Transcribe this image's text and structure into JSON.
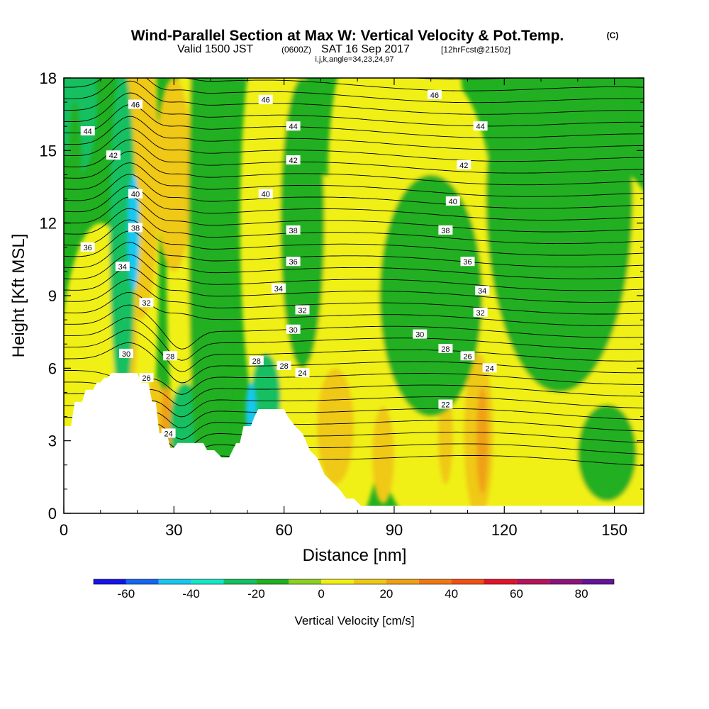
{
  "chart_data": {
    "type": "heatmap",
    "title": "Wind-Parallel Section at Max W: Vertical Velocity & Pot.Temp.",
    "title_tag": "(C)",
    "subtitle_main": "Valid 1500 JST",
    "subtitle_utc": "(0600Z)",
    "subtitle_date": "SAT 16 Sep 2017",
    "subtitle_fcst": "[12hrFcst@2150z]",
    "grid_info": "i,j,k,angle=34,23,24,97",
    "xlabel": "Distance [nm]",
    "ylabel": "Height [Kft MSL]",
    "xlim": [
      0,
      158
    ],
    "ylim": [
      0,
      18
    ],
    "x_ticks": [
      0,
      30,
      60,
      90,
      120,
      150
    ],
    "y_ticks": [
      0,
      3,
      6,
      9,
      12,
      15,
      18
    ],
    "colorbar": {
      "label": "Vertical Velocity [cm/s]",
      "bounds": [
        -70,
        -60,
        -50,
        -40,
        -30,
        -20,
        -10,
        0,
        10,
        20,
        30,
        40,
        50,
        60,
        70,
        80,
        90
      ],
      "colors": [
        "#1414e6",
        "#1466ee",
        "#14c8f0",
        "#14e6c8",
        "#14c060",
        "#20b020",
        "#8cd020",
        "#f0f014",
        "#f0c814",
        "#f0a014",
        "#f07814",
        "#f05014",
        "#e01428",
        "#b4145a",
        "#8c1478",
        "#641496"
      ],
      "tick_labels": [
        "-60",
        "-40",
        "-20",
        "0",
        "20",
        "40",
        "60",
        "80"
      ],
      "tick_values": [
        -60,
        -40,
        -20,
        0,
        20,
        40,
        60,
        80
      ]
    },
    "theta_labels": [
      {
        "text": "46",
        "x": 19.5,
        "y": 16.9
      },
      {
        "text": "44",
        "x": 6.5,
        "y": 15.8
      },
      {
        "text": "42",
        "x": 13.5,
        "y": 14.8
      },
      {
        "text": "40",
        "x": 19.5,
        "y": 13.2
      },
      {
        "text": "38",
        "x": 19.5,
        "y": 11.8
      },
      {
        "text": "36",
        "x": 6.5,
        "y": 11.0
      },
      {
        "text": "34",
        "x": 16,
        "y": 10.2
      },
      {
        "text": "32",
        "x": 22.5,
        "y": 8.7
      },
      {
        "text": "30",
        "x": 17,
        "y": 6.6
      },
      {
        "text": "28",
        "x": 29,
        "y": 6.5
      },
      {
        "text": "26",
        "x": 22.5,
        "y": 5.6
      },
      {
        "text": "24",
        "x": 28.5,
        "y": 3.3
      },
      {
        "text": "46",
        "x": 55,
        "y": 17.1
      },
      {
        "text": "46",
        "x": 101,
        "y": 17.3
      },
      {
        "text": "44",
        "x": 62.5,
        "y": 16.0
      },
      {
        "text": "44",
        "x": 113.5,
        "y": 16.0
      },
      {
        "text": "42",
        "x": 62.5,
        "y": 14.6
      },
      {
        "text": "42",
        "x": 109,
        "y": 14.4
      },
      {
        "text": "40",
        "x": 55,
        "y": 13.2
      },
      {
        "text": "40",
        "x": 106,
        "y": 12.9
      },
      {
        "text": "38",
        "x": 62.5,
        "y": 11.7
      },
      {
        "text": "38",
        "x": 104,
        "y": 11.7
      },
      {
        "text": "36",
        "x": 62.5,
        "y": 10.4
      },
      {
        "text": "36",
        "x": 110,
        "y": 10.4
      },
      {
        "text": "34",
        "x": 58.5,
        "y": 9.3
      },
      {
        "text": "34",
        "x": 114,
        "y": 9.2
      },
      {
        "text": "32",
        "x": 65,
        "y": 8.4
      },
      {
        "text": "32",
        "x": 113.5,
        "y": 8.3
      },
      {
        "text": "30",
        "x": 62.5,
        "y": 7.6
      },
      {
        "text": "30",
        "x": 97,
        "y": 7.4
      },
      {
        "text": "28",
        "x": 52.5,
        "y": 6.3
      },
      {
        "text": "28",
        "x": 60,
        "y": 6.1
      },
      {
        "text": "28",
        "x": 104,
        "y": 6.8
      },
      {
        "text": "26",
        "x": 110,
        "y": 6.5
      },
      {
        "text": "24",
        "x": 65,
        "y": 5.8
      },
      {
        "text": "24",
        "x": 116,
        "y": 6.0
      },
      {
        "text": "22",
        "x": 104,
        "y": 4.5
      }
    ],
    "terrain_profile": {
      "x": [
        0,
        2,
        3,
        5,
        6,
        8,
        9,
        10,
        11,
        12,
        13,
        14,
        15,
        17,
        19,
        20,
        21,
        23,
        24,
        25,
        26,
        27,
        28,
        29,
        30,
        31,
        33,
        35,
        36,
        38,
        39,
        41,
        43,
        45,
        46,
        47,
        48,
        49,
        50,
        51,
        52,
        53,
        57,
        60,
        61,
        63,
        65,
        67,
        69,
        71,
        73,
        75,
        77,
        79,
        81,
        83,
        85,
        87,
        89,
        91,
        158
      ],
      "z": [
        3.6,
        3.6,
        4.6,
        4.6,
        5.1,
        5.1,
        5.4,
        5.4,
        5.6,
        5.6,
        5.8,
        5.8,
        5.8,
        5.8,
        5.8,
        5.8,
        5.4,
        5.4,
        4.6,
        4.6,
        3.3,
        3.3,
        3.3,
        2.7,
        2.7,
        2.9,
        2.9,
        2.9,
        2.9,
        2.9,
        2.6,
        2.6,
        2.3,
        2.3,
        2.6,
        2.9,
        2.9,
        3.6,
        3.6,
        3.6,
        4.0,
        4.3,
        4.3,
        4.3,
        4.0,
        3.6,
        3.3,
        2.6,
        2.3,
        1.6,
        1.3,
        1.0,
        0.6,
        0.6,
        0.3,
        0.3,
        0.3,
        0.3,
        0.3,
        0.3,
        0.3
      ]
    }
  }
}
